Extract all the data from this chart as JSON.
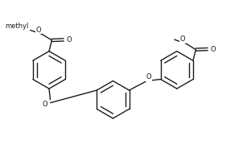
{
  "bg_color": "#ffffff",
  "line_color": "#1a1a1a",
  "line_width": 1.0,
  "font_size": 6.0,
  "fig_width": 3.07,
  "fig_height": 1.85,
  "dpi": 100,
  "xlim": [
    0.0,
    10.5
  ],
  "ylim": [
    0.3,
    6.0
  ]
}
